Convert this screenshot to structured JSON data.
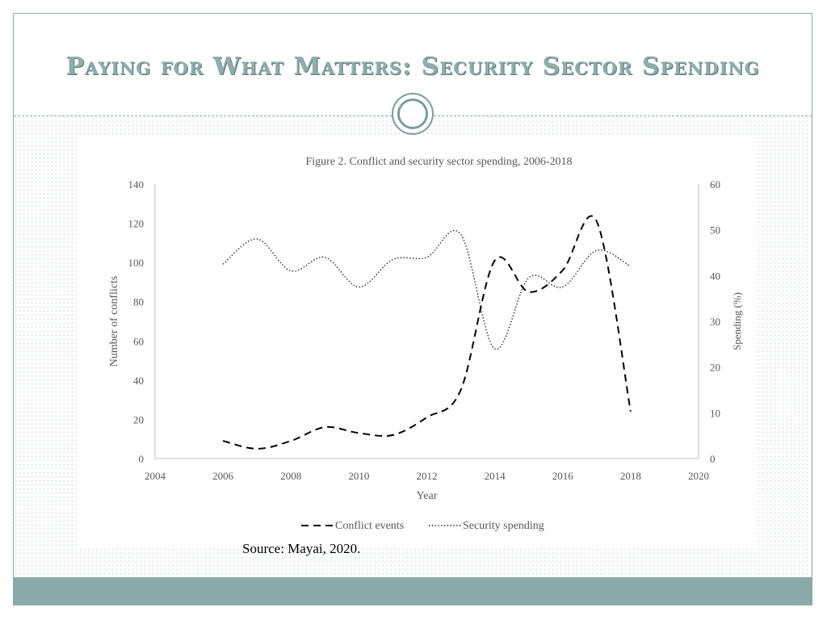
{
  "slide": {
    "title": "Paying for What Matters: Security Sector Spending",
    "source": "Source: Mayai, 2020."
  },
  "colors": {
    "accent": "#8aaaa9",
    "title": "#8fadac",
    "line": "#000000"
  },
  "chart_data": {
    "type": "line",
    "title": "Figure 2. Conflict and security sector spending, 2006-2018",
    "xlabel": "Year",
    "ylabel": "Number of conflicts",
    "y2label": "Spending (%)",
    "xlim": [
      2004,
      2020
    ],
    "xticks": [
      "2004",
      "2006",
      "2008",
      "2010",
      "2012",
      "2014",
      "2016",
      "2018",
      "2020"
    ],
    "ylim": [
      0,
      140
    ],
    "yticks": [
      "0",
      "20",
      "40",
      "60",
      "80",
      "100",
      "120",
      "140"
    ],
    "y2lim": [
      0,
      60
    ],
    "y2ticks": [
      "0",
      "10",
      "20",
      "30",
      "40",
      "50",
      "60"
    ],
    "legend_position": "bottom",
    "series": [
      {
        "name": "Conflict events",
        "axis": "left",
        "style": "dashed",
        "x": [
          2006,
          2007,
          2008,
          2009,
          2010,
          2011,
          2012,
          2013,
          2014,
          2015,
          2016,
          2017,
          2018
        ],
        "values": [
          9,
          5,
          9,
          16,
          13,
          12,
          21,
          35,
          101,
          85,
          96,
          121,
          24
        ]
      },
      {
        "name": "Security spending",
        "axis": "right",
        "style": "dotted",
        "x": [
          2006,
          2007,
          2008,
          2009,
          2010,
          2011,
          2012,
          2013,
          2014,
          2015,
          2016,
          2017,
          2018
        ],
        "values": [
          42.5,
          48,
          41,
          44,
          37.5,
          43.5,
          44,
          49,
          24,
          39.5,
          37.5,
          45.5,
          42
        ]
      }
    ]
  }
}
